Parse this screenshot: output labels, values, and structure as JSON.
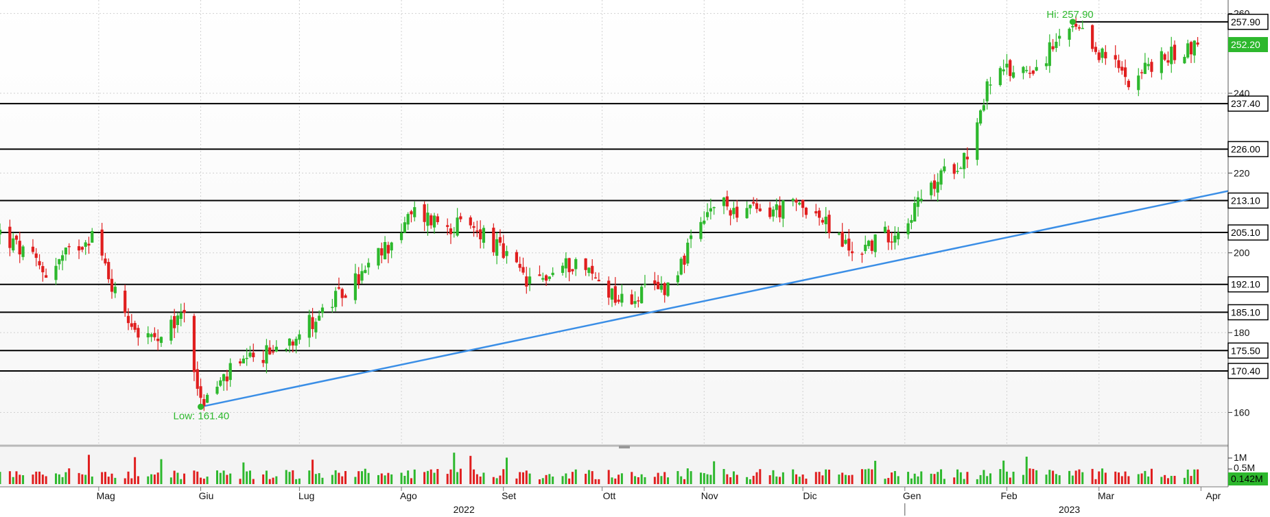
{
  "chart_data": {
    "type": "candlestick",
    "title": "",
    "colors": {
      "up": "#2db82d",
      "down": "#e01e1e",
      "trendline": "#3a8ee6",
      "annotation": "#2db82d"
    },
    "price_axis": {
      "ylim": [
        152,
        262
      ],
      "ticks": [
        160,
        180,
        200,
        220,
        240,
        260
      ]
    },
    "volume_axis": {
      "ticks": [
        "1M",
        "0.5M"
      ],
      "last_volume_label": "0.142M"
    },
    "months": [
      "Mag",
      "Giu",
      "Lug",
      "Ago",
      "Set",
      "Ott",
      "Nov",
      "Dic",
      "Gen",
      "Feb",
      "Mar",
      "Apr"
    ],
    "years": [
      "2022",
      "2023"
    ],
    "last_price_label": "252.20",
    "high_annotation": {
      "label": "Hi: 257.90",
      "value": 257.9,
      "date": "2023-02-21"
    },
    "low_annotation": {
      "label": "Low: 161.40",
      "value": 161.4,
      "date": "2022-06-01"
    },
    "horizontal_levels": [
      {
        "value": 257.9,
        "label": "257.90"
      },
      {
        "value": 237.4,
        "label": "237.40"
      },
      {
        "value": 226.0,
        "label": "226.00"
      },
      {
        "value": 213.1,
        "label": "213.10"
      },
      {
        "value": 205.1,
        "label": "205.10"
      },
      {
        "value": 192.1,
        "label": "192.10"
      },
      {
        "value": 185.1,
        "label": "185.10"
      },
      {
        "value": 175.5,
        "label": "175.50"
      },
      {
        "value": 170.4,
        "label": "170.40"
      }
    ],
    "trendline": {
      "start": {
        "date": "2022-06-01",
        "value": 161.4
      },
      "end": {
        "date": "2023-03-31",
        "value": 215.5
      }
    },
    "series": [
      {
        "date": "2022-04-01",
        "close": 205
      },
      {
        "date": "2022-04-15",
        "close": 195
      },
      {
        "date": "2022-04-29",
        "close": 205
      },
      {
        "date": "2022-05-06",
        "close": 190
      },
      {
        "date": "2022-05-13",
        "close": 180
      },
      {
        "date": "2022-05-20",
        "close": 177
      },
      {
        "date": "2022-05-27",
        "close": 186
      },
      {
        "date": "2022-06-01",
        "close": 162
      },
      {
        "date": "2022-06-10",
        "close": 170
      },
      {
        "date": "2022-06-24",
        "close": 176
      },
      {
        "date": "2022-07-08",
        "close": 185
      },
      {
        "date": "2022-07-22",
        "close": 196
      },
      {
        "date": "2022-08-05",
        "close": 210
      },
      {
        "date": "2022-08-12",
        "close": 208
      },
      {
        "date": "2022-08-26",
        "close": 205
      },
      {
        "date": "2022-09-09",
        "close": 192
      },
      {
        "date": "2022-09-23",
        "close": 198
      },
      {
        "date": "2022-10-07",
        "close": 188
      },
      {
        "date": "2022-10-21",
        "close": 192
      },
      {
        "date": "2022-11-04",
        "close": 212
      },
      {
        "date": "2022-11-18",
        "close": 210
      },
      {
        "date": "2022-12-02",
        "close": 212
      },
      {
        "date": "2022-12-16",
        "close": 200
      },
      {
        "date": "2022-12-30",
        "close": 206
      },
      {
        "date": "2023-01-13",
        "close": 220
      },
      {
        "date": "2023-01-20",
        "close": 225
      },
      {
        "date": "2023-01-27",
        "close": 244
      },
      {
        "date": "2023-02-10",
        "close": 247
      },
      {
        "date": "2023-02-21",
        "close": 256
      },
      {
        "date": "2023-03-10",
        "close": 244
      },
      {
        "date": "2023-03-24",
        "close": 250
      },
      {
        "date": "2023-03-31",
        "close": 252.2
      }
    ]
  }
}
